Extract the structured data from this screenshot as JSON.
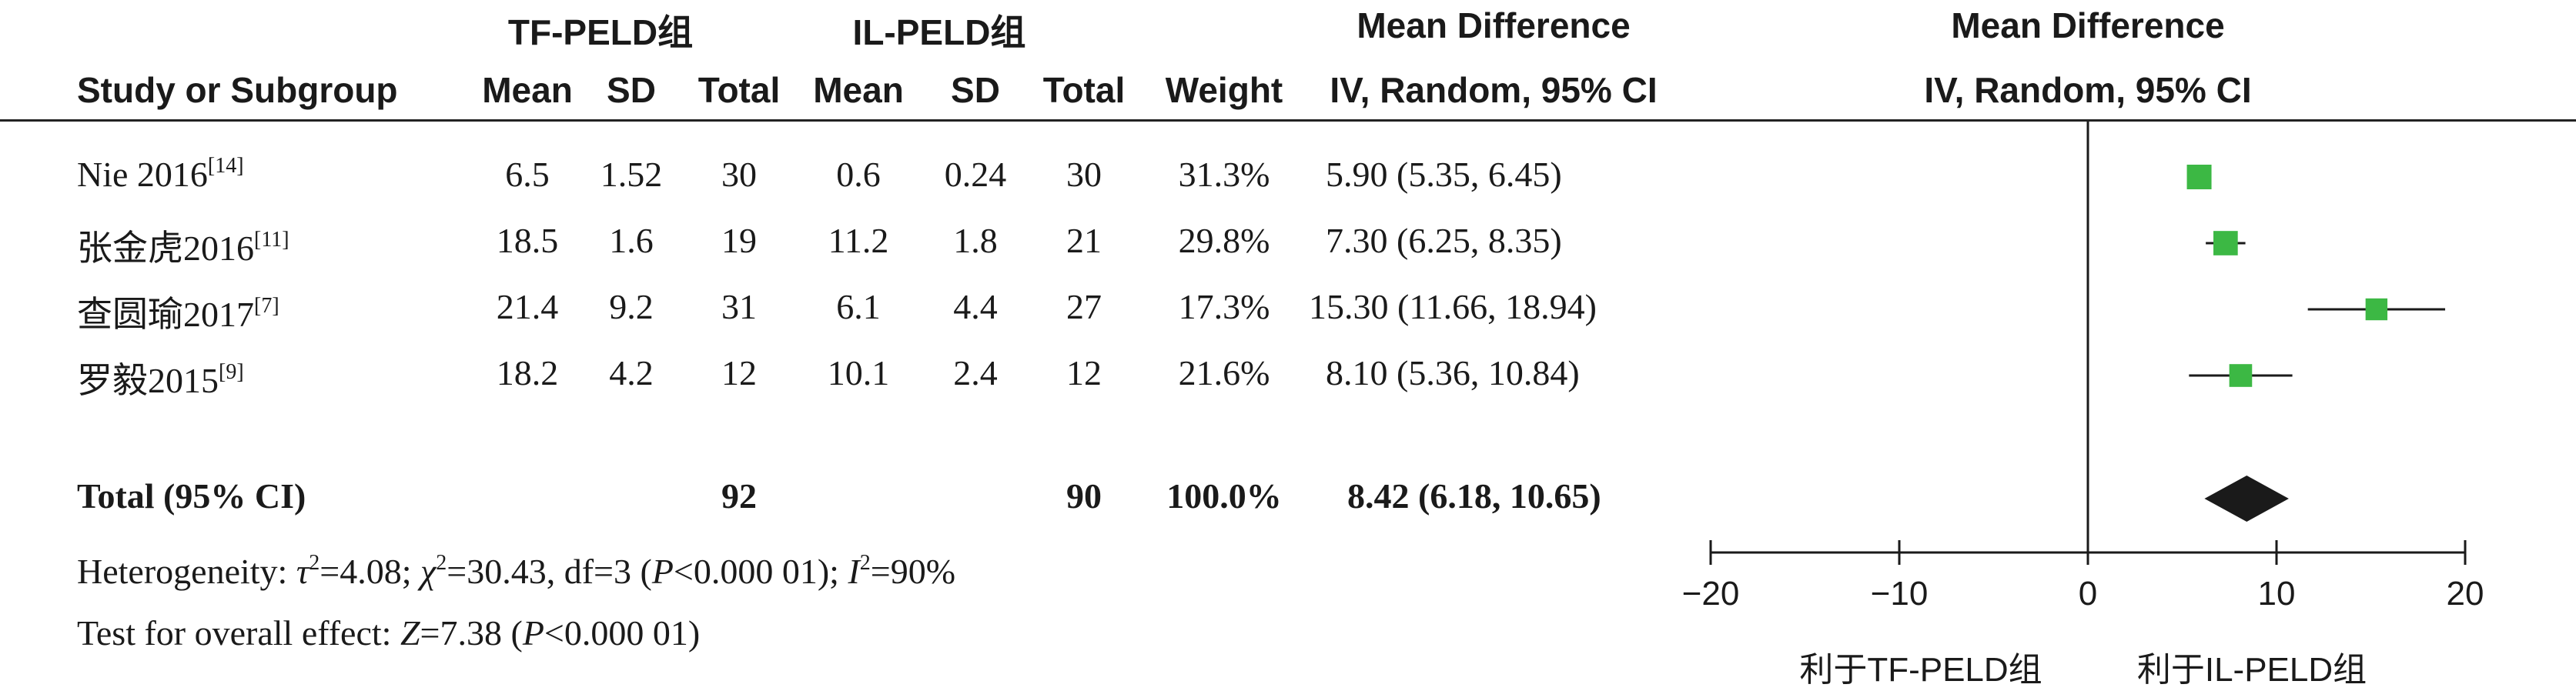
{
  "headers": {
    "group1": "TF-PELD组",
    "group2": "IL-PELD组",
    "md_top": "Mean Difference",
    "md_bottom": "IV, Random, 95% CI",
    "plot_top": "Mean Difference",
    "plot_bottom": "IV, Random, 95% CI",
    "study": "Study or Subgroup",
    "mean1": "Mean",
    "sd1": "SD",
    "total1": "Total",
    "mean2": "Mean",
    "sd2": "SD",
    "total2": "Total",
    "weight": "Weight"
  },
  "studies": [
    {
      "name": "Nie 2016",
      "ref": "[14]",
      "mean1": "6.5",
      "sd1": "1.52",
      "total1": "30",
      "mean2": "0.6",
      "sd2": "0.24",
      "total2": "30",
      "weight": "31.3%",
      "ci": "5.90 (5.35, 6.45)"
    },
    {
      "name": "张金虎2016",
      "ref": "[11]",
      "mean1": "18.5",
      "sd1": "1.6",
      "total1": "19",
      "mean2": "11.2",
      "sd2": "1.8",
      "total2": "21",
      "weight": "29.8%",
      "ci": "7.30 (6.25, 8.35)"
    },
    {
      "name": "查圆瑜2017",
      "ref": "[7]",
      "mean1": "21.4",
      "sd1": "9.2",
      "total1": "31",
      "mean2": "6.1",
      "sd2": "4.4",
      "total2": "27",
      "weight": "17.3%",
      "ci": "15.30 (11.66, 18.94)"
    },
    {
      "name": "罗毅2015",
      "ref": "[9]",
      "mean1": "18.2",
      "sd1": "4.2",
      "total1": "12",
      "mean2": "10.1",
      "sd2": "2.4",
      "total2": "12",
      "weight": "21.6%",
      "ci": "8.10 (5.36, 10.84)"
    }
  ],
  "total": {
    "label": "Total (95% CI)",
    "total1": "92",
    "total2": "90",
    "weight": "100.0%",
    "ci": "8.42 (6.18, 10.65)"
  },
  "heterogeneity": {
    "prefix": "Heterogeneity: ",
    "tau_sym": "τ",
    "tau_val": "=4.08; ",
    "chi_sym": "χ",
    "chi_val": "=30.43, df=3 (",
    "p_sym": "P",
    "p_val": "<0.000 01); ",
    "i_sym": "I",
    "i_val": "=90%"
  },
  "overall": {
    "prefix": "Test for overall effect: ",
    "z_sym": "Z",
    "z_val": "=7.38 (",
    "p_sym": "P",
    "p_val": "<0.000 01)"
  },
  "favours": {
    "left": "利于TF-PELD组",
    "right": "利于IL-PELD组"
  },
  "chart_data": {
    "type": "scatter",
    "subtype": "forest",
    "xlim": [
      -20,
      20
    ],
    "xticks": [
      -20,
      -10,
      0,
      10,
      20
    ],
    "xtick_labels": [
      "−20",
      "−10",
      "0",
      "10",
      "20"
    ],
    "point_color": "#3cb844",
    "summary_color": "#1a1a1a",
    "studies": [
      {
        "name": "Nie 2016",
        "md": 5.9,
        "lo": 5.35,
        "hi": 6.45,
        "weight": 31.3
      },
      {
        "name": "张金虎2016",
        "md": 7.3,
        "lo": 6.25,
        "hi": 8.35,
        "weight": 29.8
      },
      {
        "name": "查圆瑜2017",
        "md": 15.3,
        "lo": 11.66,
        "hi": 18.94,
        "weight": 17.3
      },
      {
        "name": "罗毅2015",
        "md": 8.1,
        "lo": 5.36,
        "hi": 10.84,
        "weight": 21.6
      }
    ],
    "summary": {
      "md": 8.42,
      "lo": 6.18,
      "hi": 10.65
    }
  }
}
